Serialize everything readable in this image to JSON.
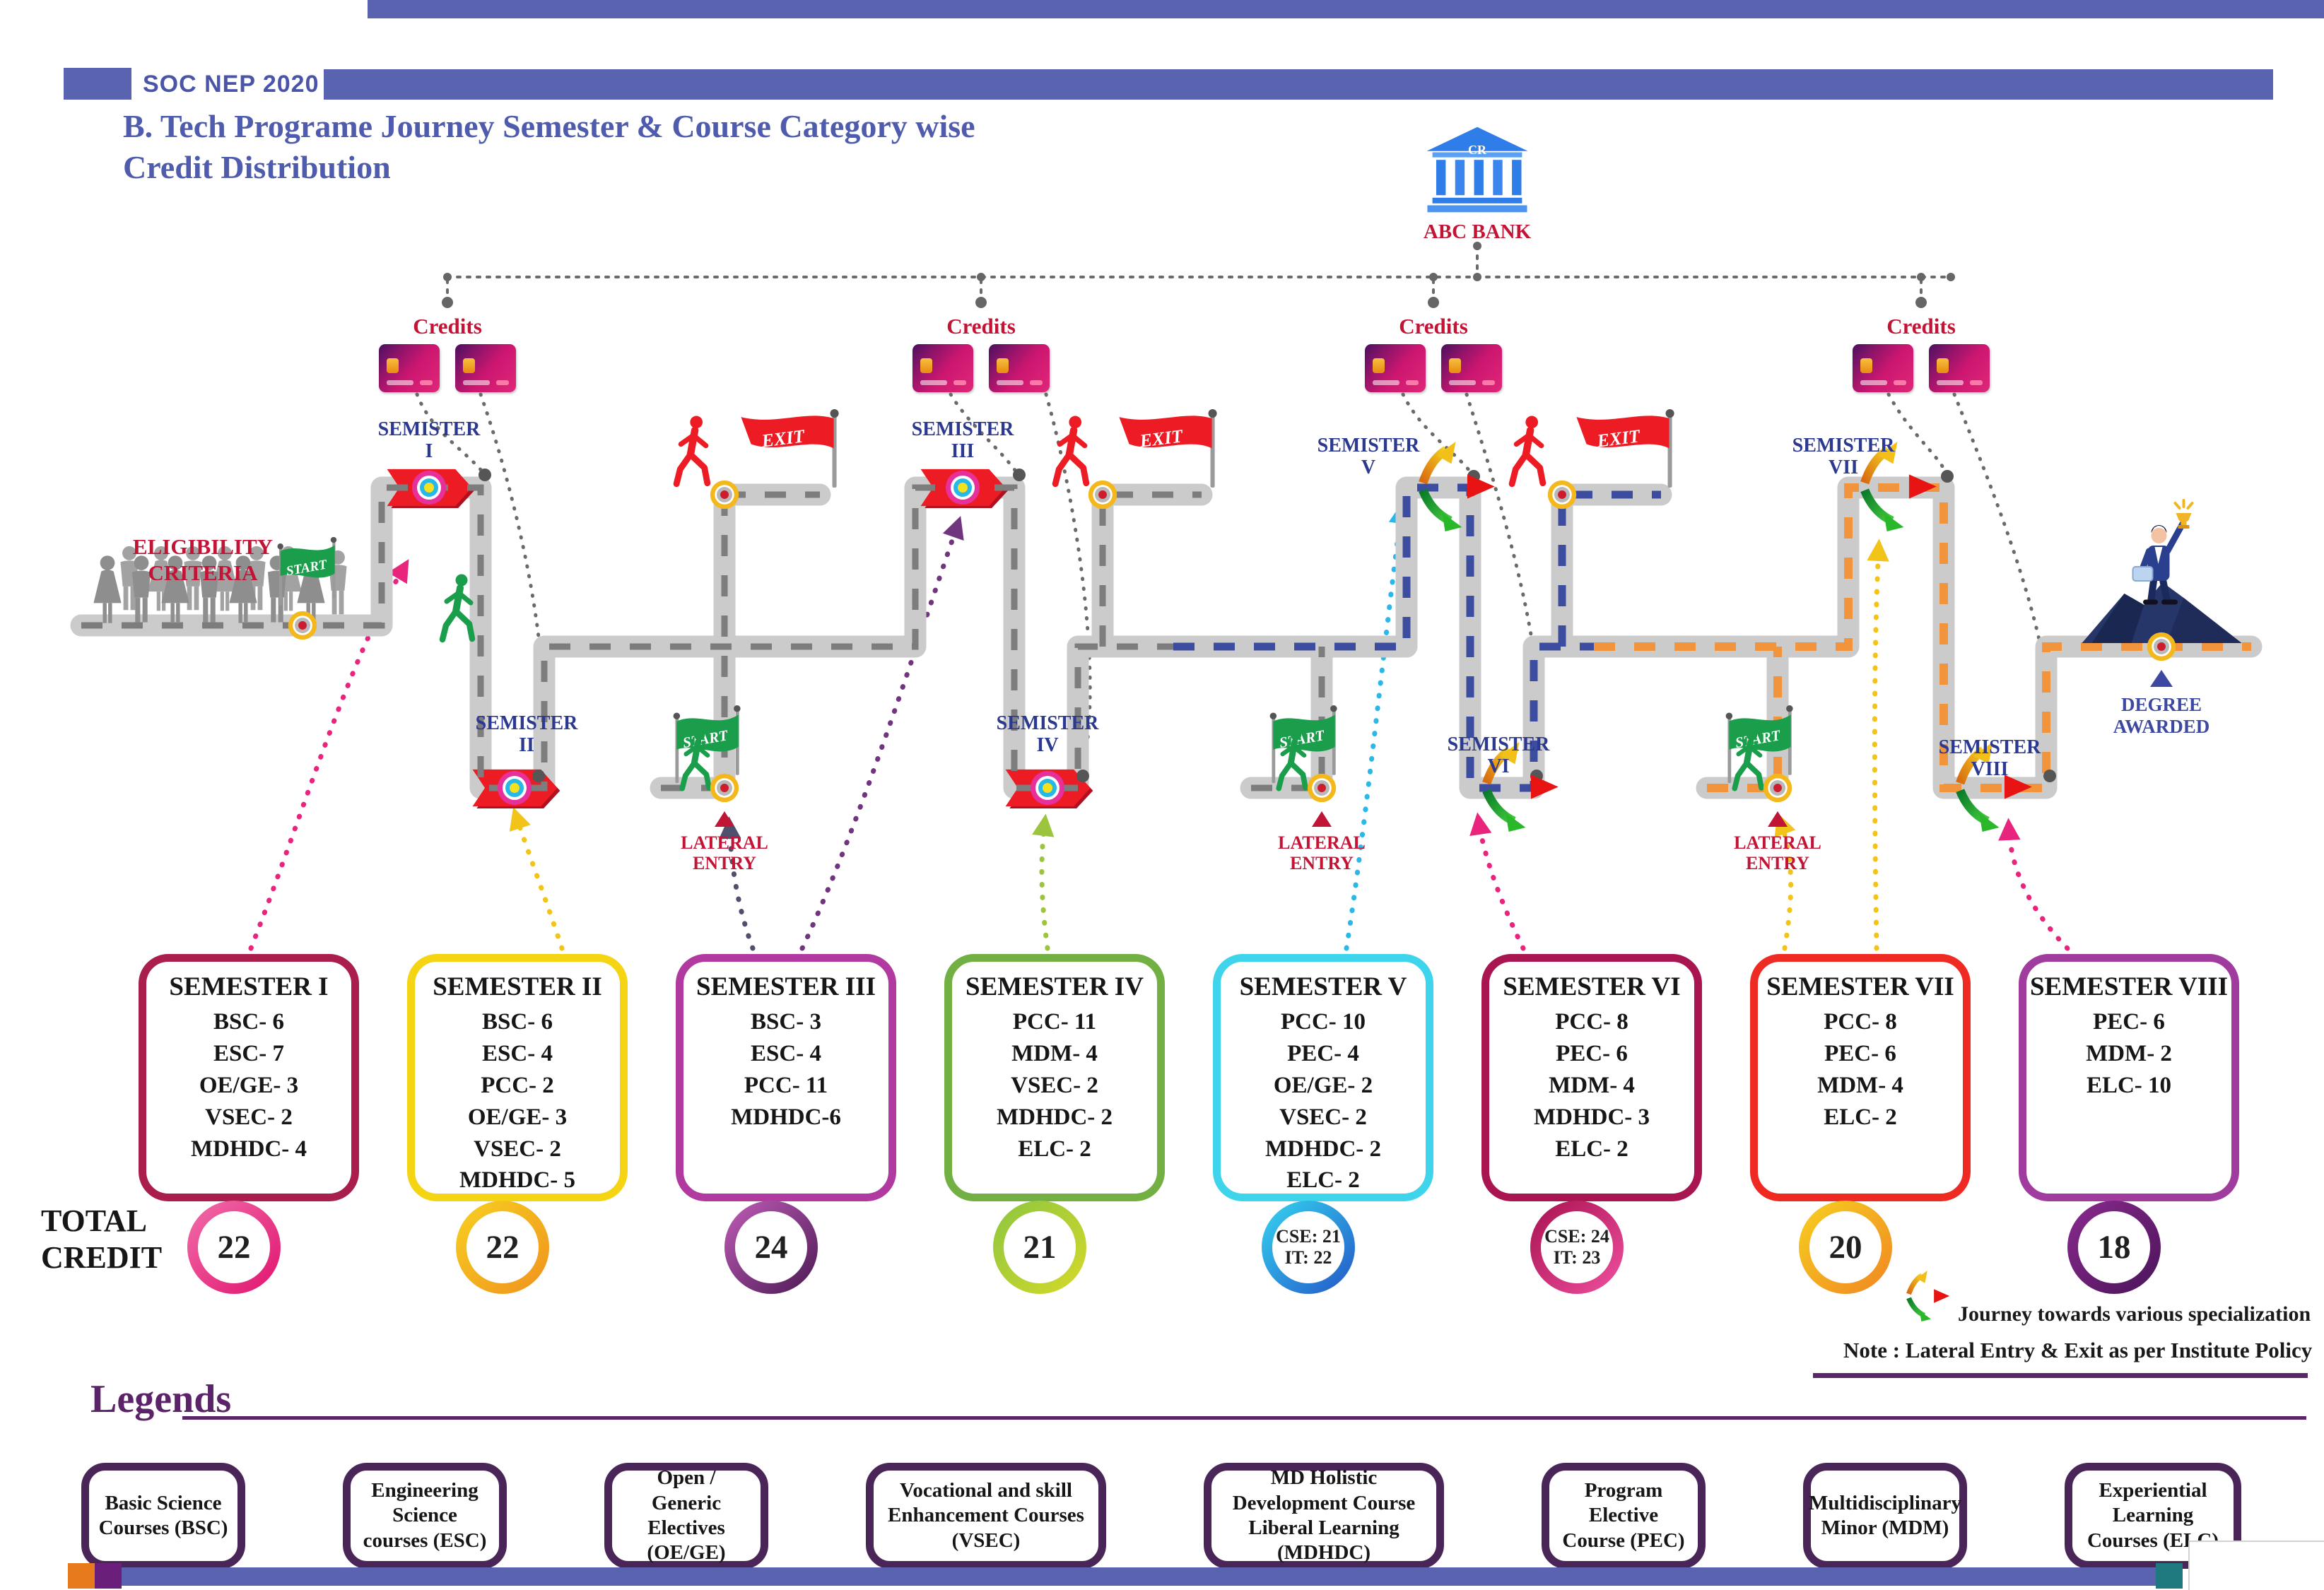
{
  "header": {
    "badge": "SOC NEP 2020",
    "title1": "B. Tech Programe Journey Semester & Course Category wise",
    "title2": "Credit Distribution"
  },
  "bank": {
    "roof": "CR",
    "name": "ABC BANK"
  },
  "credits_label": "Credits",
  "eligibility": {
    "l1": "ELIGIBILITY",
    "l2": "CRITERIA"
  },
  "flags": {
    "start": "START",
    "exit": "EXIT"
  },
  "lateral": {
    "l1": "LATERAL",
    "l2": "ENTRY"
  },
  "degree": {
    "l1": "DEGREE",
    "l2": "AWARDED"
  },
  "total_credit": {
    "l1": "TOTAL",
    "l2": "CREDIT"
  },
  "road_labels": [
    {
      "word": "SEMISTER",
      "num": "I"
    },
    {
      "word": "SEMISTER",
      "num": "II"
    },
    {
      "word": "SEMISTER",
      "num": "III"
    },
    {
      "word": "SEMISTER",
      "num": "IV"
    },
    {
      "word": "SEMISTER",
      "num": "V"
    },
    {
      "word": "SEMISTER",
      "num": "VI"
    },
    {
      "word": "SEMISTER",
      "num": "VII"
    },
    {
      "word": "SEMISTER",
      "num": "VIII"
    }
  ],
  "semesters": [
    {
      "title": "SEMESTER I",
      "items": [
        "BSC- 6",
        "ESC- 7",
        "OE/GE- 3",
        "VSEC- 2",
        "MDHDC- 4"
      ],
      "total_lines": [
        "22"
      ],
      "color": "#a91e4d",
      "ring": "linear-gradient(135deg,#f26daa,#e0136e)"
    },
    {
      "title": "SEMESTER II",
      "items": [
        "BSC- 6",
        "ESC- 4",
        "PCC- 2",
        "OE/GE- 3",
        "VSEC- 2",
        "MDHDC- 5"
      ],
      "total_lines": [
        "22"
      ],
      "color": "#f5d414",
      "ring": "linear-gradient(135deg,#f7d020,#f0921e)"
    },
    {
      "title": "SEMESTER III",
      "items": [
        "BSC- 3",
        "ESC- 4",
        "PCC- 11",
        "MDHDC-6"
      ],
      "total_lines": [
        "24"
      ],
      "color": "#b13aa0",
      "ring": "linear-gradient(135deg,#c05cb8,#4a1a52)"
    },
    {
      "title": "SEMESTER IV",
      "items": [
        "PCC- 11",
        "MDM- 4",
        "VSEC- 2",
        "MDHDC- 2",
        "ELC- 2"
      ],
      "total_lines": [
        "21"
      ],
      "color": "#72b043",
      "ring": "linear-gradient(135deg,#8cc63f,#d6d92a)"
    },
    {
      "title": "SEMESTER V",
      "items": [
        "PCC- 10",
        "PEC- 4",
        "OE/GE- 2",
        "VSEC- 2",
        "MDHDC- 2",
        "ELC- 2"
      ],
      "total_lines": [
        "CSE: 21",
        "IT: 22"
      ],
      "color": "#3ed4ec",
      "ring": "linear-gradient(135deg,#35d5f0,#2356c8)"
    },
    {
      "title": "SEMESTER VI",
      "items": [
        "PCC- 8",
        "PEC- 6",
        "MDM- 4",
        "MDHDC- 3",
        "ELC- 2"
      ],
      "total_lines": [
        "CSE: 24",
        "IT: 23"
      ],
      "color": "#a81550",
      "ring": "linear-gradient(135deg,#a81250,#f050a0)"
    },
    {
      "title": "SEMESTER VII",
      "items": [
        "PCC- 8",
        "PEC- 6",
        "MDM- 4",
        "ELC- 2"
      ],
      "total_lines": [
        "20"
      ],
      "color": "#ee2a22",
      "ring": "linear-gradient(135deg,#f7d020,#f08622)"
    },
    {
      "title": "SEMESTER VIII",
      "items": [
        "PEC- 6",
        "MDM- 2",
        "ELC- 10"
      ],
      "total_lines": [
        "18"
      ],
      "color": "#a03c9e",
      "ring": "linear-gradient(135deg,#8a2a8f,#4a1458)"
    }
  ],
  "notes": {
    "specialization": "Journey towards various specialization",
    "policy": "Note : Lateral Entry & Exit as per Institute Policy"
  },
  "legends": {
    "heading": "Legends",
    "items": [
      "Basic Science Courses (BSC)",
      "Engineering Science courses (ESC)",
      "Open / Generic Electives (OE/GE)",
      "Vocational and skill Enhancement Courses (VSEC)",
      "MD Holistic Development Course Liberal Learning (MDHDC)",
      "Program Elective Course (PEC)",
      "Multidisciplinary Minor (MDM)",
      "Experiential Learning Courses (ELC)"
    ]
  },
  "colors": {
    "header_bar": "#5a63b0",
    "road_base": "#cbcbcb",
    "dash_phase1": "#7d7d7d",
    "dash_phase2": "#3c4da0",
    "dash_phase3": "#f2943c",
    "accent_red": "#c41435",
    "label_blue": "#2b3990"
  }
}
